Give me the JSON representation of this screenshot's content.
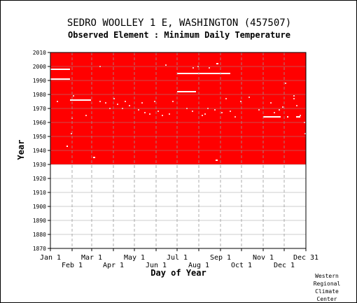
{
  "header": {
    "station": "SEDRO WOOLLEY 1 E, WASHINGTON   (457507)",
    "element": "Observed Element : Minimum Daily Temperature"
  },
  "footer": {
    "credit": [
      "Western",
      "Regional",
      "Climate",
      "Center"
    ]
  },
  "colors": {
    "available": "#ff0000",
    "missing": "#ffffff",
    "grid": "#999999",
    "axis": "#000000"
  },
  "chart_data": {
    "type": "heatmap",
    "title": "SEDRO WOOLLEY 1 E, WASHINGTON   (457507)",
    "subtitle": "Observed Element : Minimum Daily Temperature",
    "xlabel": "Day of Year",
    "ylabel": "Year",
    "xlim": [
      1,
      366
    ],
    "ylim": [
      1870,
      2010
    ],
    "grid": true,
    "x_ticks_upper": [
      {
        "label": "Jan 1",
        "day": 1
      },
      {
        "label": "Mar 1",
        "day": 60
      },
      {
        "label": "May 1",
        "day": 121
      },
      {
        "label": "Jul 1",
        "day": 182
      },
      {
        "label": "Sep 1",
        "day": 244
      },
      {
        "label": "Nov 1",
        "day": 305
      },
      {
        "label": "Dec 31",
        "day": 366
      }
    ],
    "x_ticks_lower": [
      {
        "label": "Feb 1",
        "day": 32
      },
      {
        "label": "Apr 1",
        "day": 91
      },
      {
        "label": "Jun 1",
        "day": 152
      },
      {
        "label": "Aug 1",
        "day": 213
      },
      {
        "label": "Oct 1",
        "day": 274
      },
      {
        "label": "Dec 1",
        "day": 335
      }
    ],
    "y_ticks": [
      1870,
      1880,
      1890,
      1900,
      1910,
      1920,
      1930,
      1940,
      1950,
      1960,
      1970,
      1980,
      1990,
      2000,
      2010
    ],
    "data_period": {
      "start_year": 1930,
      "end_year": 2010
    },
    "missing_segments": [
      {
        "year": 1998,
        "start_day": 1,
        "end_day": 29
      },
      {
        "year": 1991,
        "start_day": 1,
        "end_day": 29
      },
      {
        "year": 1976,
        "start_day": 29,
        "end_day": 59
      },
      {
        "year": 1995,
        "start_day": 182,
        "end_day": 258
      },
      {
        "year": 1982,
        "start_day": 182,
        "end_day": 209
      },
      {
        "year": 1964,
        "start_day": 305,
        "end_day": 330
      },
      {
        "year": 2002,
        "start_day": 238,
        "end_day": 241
      },
      {
        "year": 1935,
        "start_day": 62,
        "end_day": 65
      },
      {
        "year": 1933,
        "start_day": 237,
        "end_day": 240
      },
      {
        "year": 1943,
        "start_day": 24,
        "end_day": 26
      },
      {
        "year": 1964,
        "start_day": 339,
        "end_day": 341
      },
      {
        "year": 1964,
        "start_day": 352,
        "end_day": 358
      }
    ],
    "missing_days": [
      {
        "year": 1979,
        "day": 34
      },
      {
        "year": 1963,
        "day": 32
      },
      {
        "year": 1952,
        "day": 31
      },
      {
        "year": 1975,
        "day": 11
      },
      {
        "year": 1965,
        "day": 52
      },
      {
        "year": 2000,
        "day": 72
      },
      {
        "year": 1975,
        "day": 72
      },
      {
        "year": 1974,
        "day": 80
      },
      {
        "year": 1970,
        "day": 86
      },
      {
        "year": 1977,
        "day": 92
      },
      {
        "year": 1973,
        "day": 97
      },
      {
        "year": 1970,
        "day": 104
      },
      {
        "year": 1975,
        "day": 108
      },
      {
        "year": 1972,
        "day": 114
      },
      {
        "year": 1969,
        "day": 127
      },
      {
        "year": 1974,
        "day": 132
      },
      {
        "year": 1967,
        "day": 136
      },
      {
        "year": 1966,
        "day": 143
      },
      {
        "year": 1975,
        "day": 150
      },
      {
        "year": 1968,
        "day": 155
      },
      {
        "year": 1965,
        "day": 161
      },
      {
        "year": 2001,
        "day": 166
      },
      {
        "year": 1966,
        "day": 171
      },
      {
        "year": 1975,
        "day": 176
      },
      {
        "year": 1970,
        "day": 196
      },
      {
        "year": 1968,
        "day": 204
      },
      {
        "year": 1999,
        "day": 205
      },
      {
        "year": 2000,
        "day": 212
      },
      {
        "year": 1965,
        "day": 218
      },
      {
        "year": 1966,
        "day": 222
      },
      {
        "year": 1970,
        "day": 226
      },
      {
        "year": 1999,
        "day": 228
      },
      {
        "year": 1969,
        "day": 236
      },
      {
        "year": 1967,
        "day": 246
      },
      {
        "year": 1977,
        "day": 252
      },
      {
        "year": 1968,
        "day": 258
      },
      {
        "year": 1964,
        "day": 265
      },
      {
        "year": 1975,
        "day": 273
      },
      {
        "year": 1978,
        "day": 285
      },
      {
        "year": 1969,
        "day": 299
      },
      {
        "year": 1974,
        "day": 316
      },
      {
        "year": 1967,
        "day": 321
      },
      {
        "year": 1969,
        "day": 328
      },
      {
        "year": 1971,
        "day": 333
      },
      {
        "year": 1988,
        "day": 337
      },
      {
        "year": 1977,
        "day": 349
      },
      {
        "year": 1979,
        "day": 349
      },
      {
        "year": 1972,
        "day": 353
      },
      {
        "year": 1965,
        "day": 358
      },
      {
        "year": 1960,
        "day": 364
      },
      {
        "year": 1952,
        "day": 365
      }
    ]
  }
}
